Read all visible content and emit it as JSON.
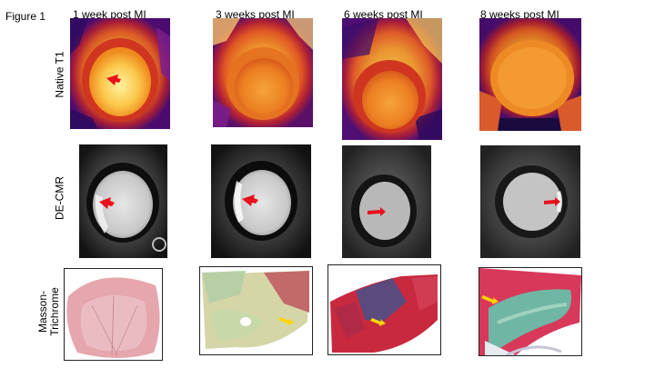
{
  "figure_label": "Figure 1",
  "columns": [
    {
      "title": "1 week post MI"
    },
    {
      "title": "3 weeks post MI"
    },
    {
      "title": "6 weeks post MI"
    },
    {
      "title": "8 weeks post MI"
    }
  ],
  "rows": [
    {
      "label": "Native T1"
    },
    {
      "label": "DE-CMR"
    },
    {
      "label_line1": "Masson-",
      "label_line2": "Trichrome"
    }
  ],
  "arrow_colors": {
    "red": "#e8101a",
    "yellow": "#ffd400"
  },
  "t1_palette": [
    "#2a0a5e",
    "#7c1f8e",
    "#d0361f",
    "#f07a12",
    "#fcc54a",
    "#fff5b0"
  ]
}
